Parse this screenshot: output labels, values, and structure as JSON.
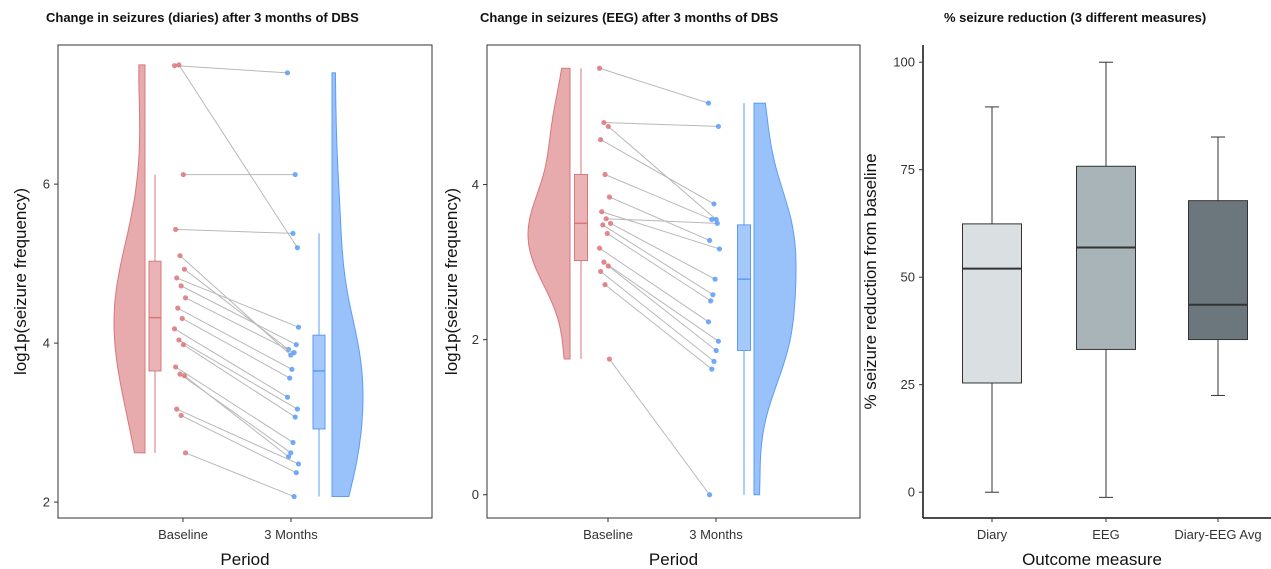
{
  "chart_data": [
    {
      "type": "raincloud-violin-box",
      "title": "Change in seizures (diaries) after 3 months of DBS",
      "xlabel": "Period",
      "ylabel": "log1p(seizure frequency)",
      "categories": [
        "Baseline",
        "3 Months"
      ],
      "ylim": [
        1.8,
        7.75
      ],
      "yticks": [
        2,
        4,
        6
      ],
      "colors": {
        "Baseline": "#d9777a",
        "3 Months": "#5b9cf8"
      },
      "box": {
        "Baseline": {
          "min": 2.62,
          "q1": 3.65,
          "median": 4.32,
          "q3": 5.03,
          "max": 6.12
        },
        "3 Months": {
          "min": 2.07,
          "q1": 2.92,
          "median": 3.65,
          "q3": 4.1,
          "max": 5.38
        }
      },
      "pairs": [
        [
          7.49,
          7.4
        ],
        [
          7.5,
          5.2
        ],
        [
          6.12,
          6.12
        ],
        [
          5.43,
          5.38
        ],
        [
          5.1,
          3.85
        ],
        [
          4.93,
          3.92
        ],
        [
          4.82,
          4.2
        ],
        [
          4.72,
          3.98
        ],
        [
          4.57,
          3.88
        ],
        [
          4.44,
          3.67
        ],
        [
          4.31,
          3.56
        ],
        [
          4.18,
          3.32
        ],
        [
          4.04,
          3.17
        ],
        [
          3.98,
          3.07
        ],
        [
          3.7,
          2.75
        ],
        [
          3.61,
          2.62
        ],
        [
          3.59,
          2.57
        ],
        [
          3.17,
          2.48
        ],
        [
          3.09,
          2.37
        ],
        [
          2.62,
          2.07
        ]
      ]
    },
    {
      "type": "raincloud-violin-box",
      "title": "Change in seizures (EEG) after 3 months of DBS",
      "xlabel": "Period",
      "ylabel": "log1p(seizure frequency)",
      "categories": [
        "Baseline",
        "3 Months"
      ],
      "ylim": [
        -0.3,
        5.8
      ],
      "yticks": [
        0,
        2,
        4
      ],
      "colors": {
        "Baseline": "#d9777a",
        "3 Months": "#5b9cf8"
      },
      "box": {
        "Baseline": {
          "min": 1.75,
          "q1": 3.02,
          "median": 3.5,
          "q3": 4.13,
          "max": 5.5
        },
        "3 Months": {
          "min": 0.0,
          "q1": 1.86,
          "median": 2.78,
          "q3": 3.48,
          "max": 5.05
        }
      },
      "pairs": [
        [
          5.5,
          5.05
        ],
        [
          4.8,
          4.75
        ],
        [
          4.75,
          3.55
        ],
        [
          4.58,
          3.75
        ],
        [
          4.13,
          3.55
        ],
        [
          3.84,
          3.28
        ],
        [
          3.65,
          3.17
        ],
        [
          3.56,
          3.5
        ],
        [
          3.5,
          2.78
        ],
        [
          3.48,
          2.58
        ],
        [
          3.37,
          2.5
        ],
        [
          3.18,
          2.23
        ],
        [
          3.0,
          1.98
        ],
        [
          2.95,
          1.86
        ],
        [
          2.88,
          1.72
        ],
        [
          2.71,
          1.62
        ],
        [
          1.75,
          0.0
        ]
      ]
    },
    {
      "type": "box",
      "title": "% seizure reduction (3 different measures)",
      "xlabel": "Outcome measure",
      "ylabel": "% seizure reduction from baseline",
      "categories": [
        "Diary",
        "EEG",
        "Diary-EEG Avg"
      ],
      "ylim": [
        -6,
        104
      ],
      "yticks": [
        0,
        25,
        50,
        75,
        100
      ],
      "colors": [
        "#dadfe1",
        "#a9b4b9",
        "#6c767d"
      ],
      "boxes": [
        {
          "min": 0,
          "q1": 25.4,
          "median": 52.0,
          "q3": 62.4,
          "max": 89.6
        },
        {
          "min": -1.2,
          "q1": 33.2,
          "median": 56.9,
          "q3": 75.8,
          "max": 100
        },
        {
          "min": 22.5,
          "q1": 35.5,
          "median": 43.6,
          "q3": 67.8,
          "max": 82.6
        }
      ]
    }
  ]
}
